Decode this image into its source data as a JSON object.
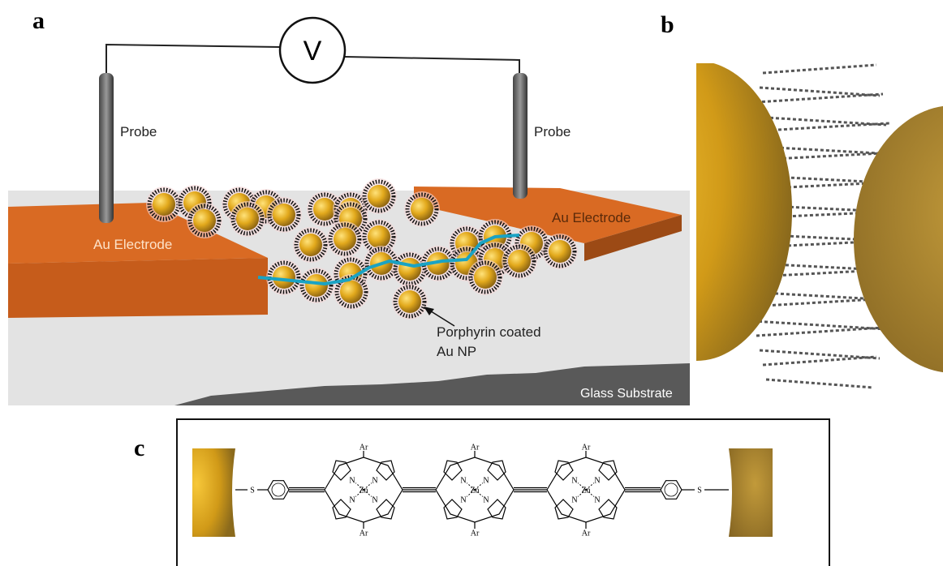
{
  "panels": {
    "a": {
      "label": "a",
      "voltmeter": "V",
      "probes": [
        "Probe",
        "Probe"
      ],
      "electrodes": [
        "Au Electrode",
        "Au Electrode"
      ],
      "nanoparticle_label": [
        "Porphyrin coated",
        "Au NP"
      ],
      "substrate": "Glass Substrate"
    },
    "b": {
      "label": "b"
    },
    "c": {
      "label": "c",
      "sulfur": [
        "S",
        "S"
      ],
      "porphyrins": [
        {
          "ar_top": "Ar",
          "ar_bottom": "Ar",
          "metal": "Zn",
          "nitrogens": [
            "N",
            "N",
            "N",
            "N"
          ]
        },
        {
          "ar_top": "Ar",
          "ar_bottom": "Ar",
          "metal": "Zn",
          "nitrogens": [
            "N",
            "N",
            "N",
            "N"
          ]
        },
        {
          "ar_top": "Ar",
          "ar_bottom": "Ar",
          "metal": "Zn",
          "nitrogens": [
            "N",
            "N",
            "N",
            "N"
          ]
        }
      ]
    }
  }
}
